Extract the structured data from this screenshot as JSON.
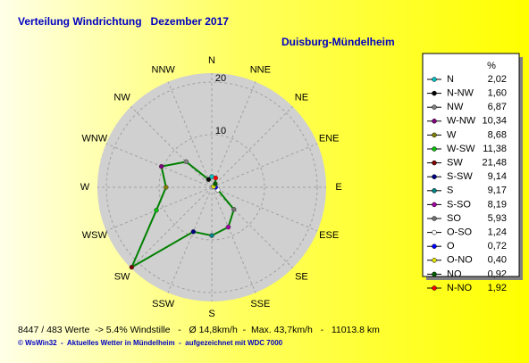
{
  "chart_data": {
    "type": "radar",
    "title": "Verteilung Windrichtung   Dezember 2017",
    "subtitle": "Duisburg-Mündelheim",
    "direction_labels": [
      "N",
      "NNE",
      "NE",
      "ENE",
      "E",
      "ESE",
      "SE",
      "SSE",
      "S",
      "SSW",
      "SW",
      "WSW",
      "W",
      "WNW",
      "NW",
      "NNW"
    ],
    "legend_title": "%",
    "categories": [
      "N",
      "N-NW",
      "NW",
      "W-NW",
      "W",
      "W-SW",
      "SW",
      "S-SW",
      "S",
      "S-SO",
      "SO",
      "O-SO",
      "O",
      "O-NO",
      "NO",
      "N-NO"
    ],
    "values": [
      2.02,
      1.6,
      6.87,
      10.34,
      8.68,
      11.38,
      21.48,
      9.14,
      9.17,
      8.19,
      5.93,
      1.24,
      0.72,
      0.4,
      0.92,
      1.92
    ],
    "value_labels": [
      "2,02",
      "1,60",
      "6,87",
      "10,34",
      "8,68",
      "11,38",
      "21,48",
      "9,14",
      "9,17",
      "8,19",
      "5,93",
      "1,24",
      "0,72",
      "0,40",
      "0,92",
      "1,92"
    ],
    "marker_colors": [
      "#00c0c0",
      "#000000",
      "#808080",
      "#800080",
      "#808000",
      "#00c000",
      "#800000",
      "#000080",
      "#008080",
      "#a000a0",
      "#707070",
      "#ffffff",
      "#0000ff",
      "#e0e000",
      "#006000",
      "#ff0000"
    ],
    "color": "#008000",
    "rlim": [
      0,
      21.7
    ],
    "rticks": [
      10,
      20
    ],
    "grid": true,
    "footer": "8447 / 483 Werte  -> 5.4% Windstille   -   Ø 14,8km/h  -  Max. 43,7km/h   -   11013.8 km",
    "credit": "© WsWin32  -  Aktuelles Wetter in Mündelheim  -  aufgezeichnet mit WDC 7000"
  }
}
